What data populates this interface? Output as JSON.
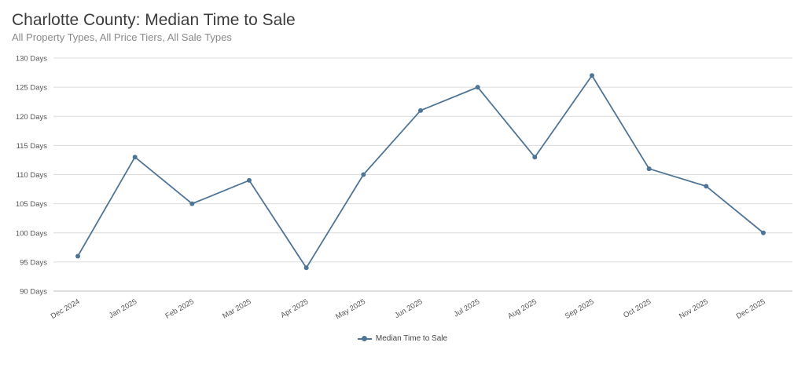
{
  "chart_data": {
    "type": "line",
    "title": "Charlotte County: Median Time to Sale",
    "subtitle": "All Property Types, All Price Tiers, All Sale Types",
    "categories": [
      "Dec 2024",
      "Jan 2025",
      "Feb 2025",
      "Mar 2025",
      "Apr 2025",
      "May 2025",
      "Jun 2025",
      "Jul 2025",
      "Aug 2025",
      "Sep 2025",
      "Oct 2025",
      "Nov 2025",
      "Dec 2025"
    ],
    "series": [
      {
        "name": "Median Time to Sale",
        "values": [
          96,
          113,
          105,
          109,
          94,
          110,
          121,
          125,
          113,
          127,
          111,
          108,
          100
        ],
        "color": "#4f7596"
      }
    ],
    "ylim": [
      90,
      130
    ],
    "yticks": [
      90,
      95,
      100,
      105,
      110,
      115,
      120,
      125,
      130
    ],
    "ytick_suffix": " Days",
    "grid": true,
    "legend_position": "bottom-center"
  }
}
